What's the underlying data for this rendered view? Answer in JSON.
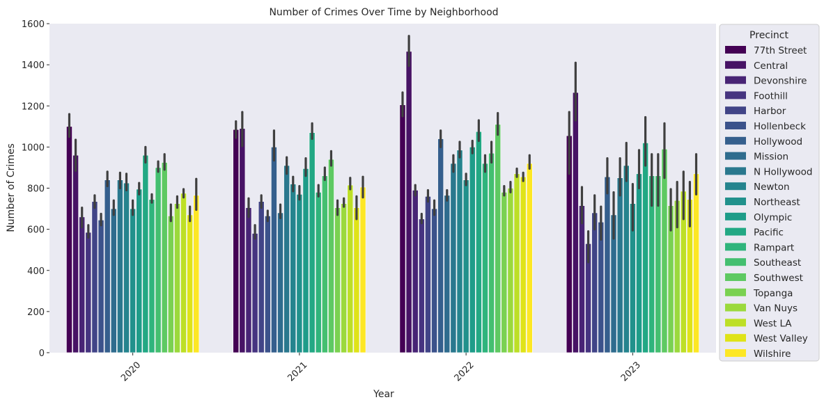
{
  "chart_data": {
    "type": "bar",
    "title": "Number of Crimes Over Time by Neighborhood",
    "xlabel": "Year",
    "ylabel": "Number of Crimes",
    "categories": [
      "2020",
      "2021",
      "2022",
      "2023"
    ],
    "ylim": [
      0,
      1600
    ],
    "yticks": [
      "0",
      "200",
      "400",
      "600",
      "800",
      "1000",
      "1200",
      "1400",
      "1600"
    ],
    "grid": false,
    "error_bars": true,
    "legend": {
      "title": "Precinct",
      "placement": "right, outside plot"
    },
    "series": [
      {
        "name": "77th Street",
        "color": "#440154",
        "values": [
          1100,
          1085,
          1205,
          1055
        ],
        "err_low": [
          1050,
          1045,
          1150,
          870
        ],
        "err_high": [
          1160,
          1125,
          1265,
          1170
        ]
      },
      {
        "name": "Central",
        "color": "#471365",
        "values": [
          960,
          1090,
          1465,
          1265
        ],
        "err_low": [
          885,
          1005,
          1395,
          1130
        ],
        "err_high": [
          1035,
          1170,
          1540,
          1410
        ]
      },
      {
        "name": "Devonshire",
        "color": "#482475",
        "values": [
          660,
          705,
          790,
          715
        ],
        "err_low": [
          610,
          660,
          765,
          630
        ],
        "err_high": [
          705,
          750,
          815,
          805
        ]
      },
      {
        "name": "Foothill",
        "color": "#463480",
        "values": [
          585,
          580,
          650,
          530
        ],
        "err_low": [
          560,
          555,
          630,
          440
        ],
        "err_high": [
          620,
          620,
          675,
          590
        ]
      },
      {
        "name": "Harbor",
        "color": "#414487",
        "values": [
          735,
          735,
          760,
          680
        ],
        "err_low": [
          705,
          705,
          735,
          600
        ],
        "err_high": [
          765,
          765,
          790,
          765
        ]
      },
      {
        "name": "Hollenbeck",
        "color": "#3b528b",
        "values": [
          645,
          665,
          700,
          635
        ],
        "err_low": [
          620,
          640,
          670,
          550
        ],
        "err_high": [
          675,
          690,
          740,
          710
        ]
      },
      {
        "name": "Hollywood",
        "color": "#355f8d",
        "values": [
          840,
          1000,
          1040,
          855
        ],
        "err_low": [
          810,
          935,
          1000,
          775
        ],
        "err_high": [
          880,
          1080,
          1080,
          945
        ]
      },
      {
        "name": "Mission",
        "color": "#2f6c8e",
        "values": [
          700,
          680,
          765,
          670
        ],
        "err_low": [
          670,
          655,
          740,
          555
        ],
        "err_high": [
          740,
          720,
          790,
          780
        ]
      },
      {
        "name": "N Hollywood",
        "color": "#2a788e",
        "values": [
          840,
          910,
          920,
          850
        ],
        "err_low": [
          800,
          870,
          880,
          765
        ],
        "err_high": [
          875,
          950,
          960,
          945
        ]
      },
      {
        "name": "Newton",
        "color": "#25848e",
        "values": [
          825,
          820,
          985,
          910
        ],
        "err_low": [
          790,
          785,
          950,
          835
        ],
        "err_high": [
          870,
          855,
          1025,
          1020
        ]
      },
      {
        "name": "Northeast",
        "color": "#21918c",
        "values": [
          700,
          770,
          840,
          725
        ],
        "err_low": [
          670,
          745,
          815,
          595
        ],
        "err_high": [
          740,
          810,
          870,
          820
        ]
      },
      {
        "name": "Olympic",
        "color": "#1e9c89",
        "values": [
          795,
          895,
          1000,
          870
        ],
        "err_low": [
          770,
          860,
          970,
          800
        ],
        "err_high": [
          825,
          945,
          1030,
          985
        ]
      },
      {
        "name": "Pacific",
        "color": "#22a884",
        "values": [
          960,
          1070,
          1075,
          1020
        ],
        "err_low": [
          925,
          1040,
          1030,
          910
        ],
        "err_high": [
          1000,
          1115,
          1130,
          1145
        ]
      },
      {
        "name": "Rampart",
        "color": "#2fb47c",
        "values": [
          745,
          780,
          920,
          860
        ],
        "err_low": [
          730,
          760,
          880,
          715
        ],
        "err_high": [
          770,
          815,
          960,
          965
        ]
      },
      {
        "name": "Southeast",
        "color": "#44bf70",
        "values": [
          900,
          860,
          970,
          860
        ],
        "err_low": [
          880,
          840,
          925,
          715
        ],
        "err_high": [
          930,
          900,
          1025,
          965
        ]
      },
      {
        "name": "Southwest",
        "color": "#5ec962",
        "values": [
          925,
          940,
          1110,
          990
        ],
        "err_low": [
          890,
          910,
          1060,
          850
        ],
        "err_high": [
          965,
          980,
          1165,
          1115
        ]
      },
      {
        "name": "Topanga",
        "color": "#7ad151",
        "values": [
          665,
          705,
          780,
          715
        ],
        "err_low": [
          640,
          670,
          765,
          595
        ],
        "err_high": [
          720,
          740,
          810,
          795
        ]
      },
      {
        "name": "Van Nuys",
        "color": "#9bd93c",
        "values": [
          725,
          725,
          800,
          740
        ],
        "err_low": [
          705,
          710,
          780,
          610
        ],
        "err_high": [
          760,
          750,
          830,
          830
        ]
      },
      {
        "name": "West LA",
        "color": "#bddf26",
        "values": [
          775,
          815,
          870,
          785
        ],
        "err_low": [
          755,
          795,
          855,
          650
        ],
        "err_high": [
          795,
          850,
          895,
          880
        ]
      },
      {
        "name": "West Valley",
        "color": "#dfe318",
        "values": [
          670,
          705,
          855,
          745
        ],
        "err_low": [
          640,
          650,
          835,
          615
        ],
        "err_high": [
          710,
          760,
          875,
          830
        ]
      },
      {
        "name": "Wilshire",
        "color": "#fde725",
        "values": [
          765,
          805,
          920,
          870
        ],
        "err_low": [
          695,
          755,
          895,
          770
        ],
        "err_high": [
          845,
          855,
          960,
          965
        ]
      }
    ]
  }
}
